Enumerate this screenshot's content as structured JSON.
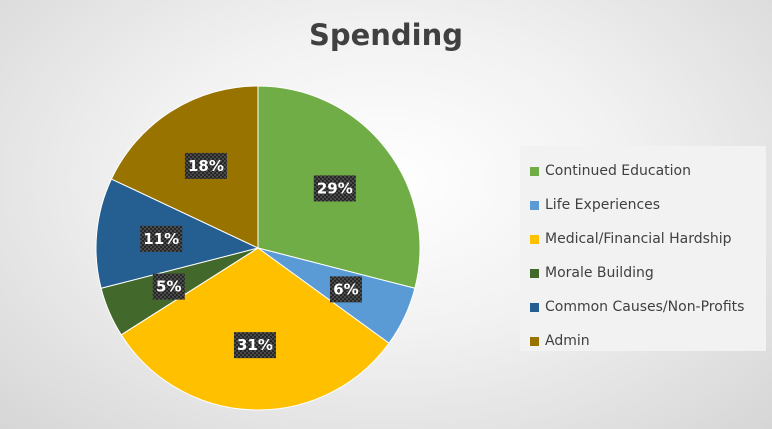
{
  "chart_data": {
    "type": "pie",
    "title": "Spending",
    "categories": [
      "Continued Education",
      "Life Experiences",
      "Medical/Financial Hardship",
      "Morale Building",
      "Common Causes/Non-Profits",
      "Admin"
    ],
    "values": [
      29,
      6,
      31,
      5,
      11,
      18
    ],
    "data_labels": [
      "29%",
      "6%",
      "31%",
      "5%",
      "11%",
      "18%"
    ],
    "colors": [
      "#70ad47",
      "#5b9bd5",
      "#ffc000",
      "#43682b",
      "#255e91",
      "#997300"
    ],
    "legend_position": "right",
    "label_style": "dark-patterned-box"
  }
}
